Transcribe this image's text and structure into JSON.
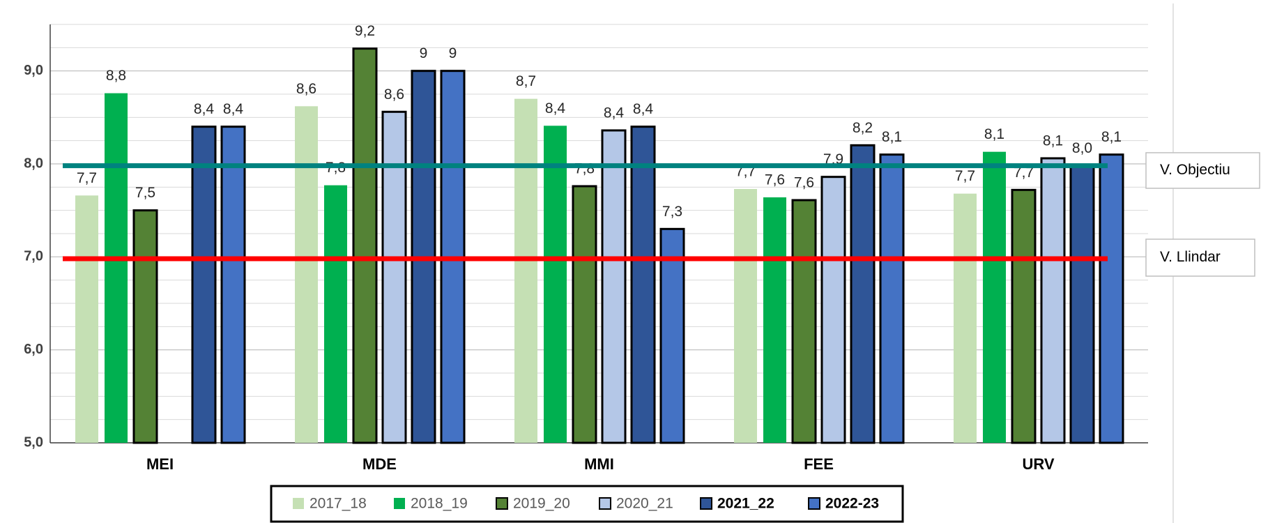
{
  "chart_data": {
    "type": "bar",
    "categories": [
      "MEI",
      "MDE",
      "MMI",
      "FEE",
      "URV"
    ],
    "series": [
      {
        "name": "2017_18",
        "color": "#c5e0b4",
        "border": false,
        "legend_bold": false,
        "values": [
          7.66,
          8.62,
          8.7,
          7.73,
          7.68
        ],
        "value_labels": [
          "7,7",
          "8,6",
          "8,7",
          "7,7",
          "7,7"
        ]
      },
      {
        "name": "2018_19",
        "color": "#00b050",
        "border": false,
        "legend_bold": false,
        "values": [
          8.76,
          7.77,
          8.41,
          7.64,
          8.13
        ],
        "value_labels": [
          "8,8",
          "7,8",
          "8,4",
          "7,6",
          "8,1"
        ]
      },
      {
        "name": "2019_20",
        "color": "#548235",
        "border": true,
        "legend_bold": false,
        "values": [
          7.5,
          9.24,
          7.76,
          7.61,
          7.72
        ],
        "value_labels": [
          "7,5",
          "9,2",
          "7,8",
          "7,6",
          "7,7"
        ]
      },
      {
        "name": "2020_21",
        "color": "#b4c7e7",
        "border": true,
        "legend_bold": false,
        "values": [
          null,
          8.56,
          8.36,
          7.86,
          8.06
        ],
        "value_labels": [
          null,
          "8,6",
          "8,4",
          "7,9",
          "8,1"
        ]
      },
      {
        "name": "2021_22",
        "color": "#2f5597",
        "border": true,
        "legend_bold": true,
        "values": [
          8.4,
          9.0,
          8.4,
          8.2,
          7.98
        ],
        "value_labels": [
          "8,4",
          "9",
          "8,4",
          "8,2",
          "8,0"
        ]
      },
      {
        "name": "2022-23",
        "color": "#4472c4",
        "border": true,
        "legend_bold": true,
        "values": [
          8.4,
          9.0,
          7.3,
          8.1,
          8.1
        ],
        "value_labels": [
          "8,4",
          "9",
          "7,3",
          "8,1",
          "8,1"
        ]
      }
    ],
    "reference_lines": [
      {
        "label": "V. Objectiu",
        "value": 7.98,
        "color": "#00827f"
      },
      {
        "label": "V. Llindar",
        "value": 6.98,
        "color": "#ff0000"
      }
    ],
    "ylim": [
      5,
      9.5
    ],
    "yticks": [
      {
        "value": 5,
        "label": "5,0"
      },
      {
        "value": 6,
        "label": "6,0"
      },
      {
        "value": 7,
        "label": "7,0"
      },
      {
        "value": 8,
        "label": "8,0"
      },
      {
        "value": 9,
        "label": "9,0"
      }
    ],
    "grid": true,
    "minor_grid": 0.25,
    "legend": "bottom"
  }
}
